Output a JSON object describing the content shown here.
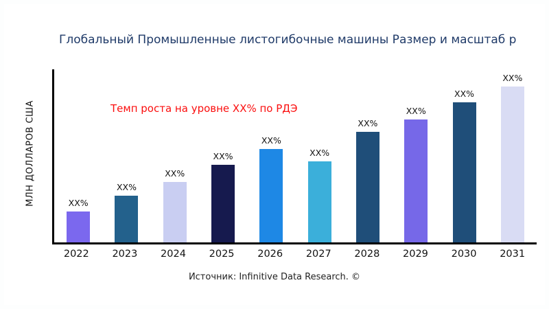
{
  "title": "Глобальный Промышленные листогибочные машины Размер и масштаб р",
  "ylabel": "МЛН ДОЛЛАРОВ США",
  "growth_note": "Темп роста на уровне XX% по РДЭ",
  "source": "Источник: Infinitive Data Research. ©",
  "colors": {
    "title": "#1f3a68",
    "growth_note": "#fb0e0e"
  },
  "chart_data": {
    "type": "bar",
    "title": "Глобальный Промышленные листогибочные машины Размер и масштаб р",
    "xlabel": "",
    "ylabel": "МЛН ДОЛЛАРОВ США",
    "categories": [
      "2022",
      "2023",
      "2024",
      "2025",
      "2026",
      "2027",
      "2028",
      "2029",
      "2030",
      "2031"
    ],
    "values": [
      18,
      27,
      35,
      45,
      54,
      47,
      64,
      71,
      81,
      90
    ],
    "values_note": "relative bar heights in % of plot height; actual figures masked as XX% in the chart",
    "bar_labels": [
      "XX%",
      "XX%",
      "XX%",
      "XX%",
      "XX%",
      "XX%",
      "XX%",
      "XX%",
      "XX%",
      "XX%"
    ],
    "bar_colors": [
      "#7b68ee",
      "#23618c",
      "#c9cef2",
      "#161a4e",
      "#1e88e5",
      "#3bafda",
      "#1f4e79",
      "#7668e8",
      "#1f4e79",
      "#d9dcf4"
    ],
    "grid": false,
    "legend": "none",
    "annotation": "Темп роста на уровне XX% по РДЭ"
  }
}
